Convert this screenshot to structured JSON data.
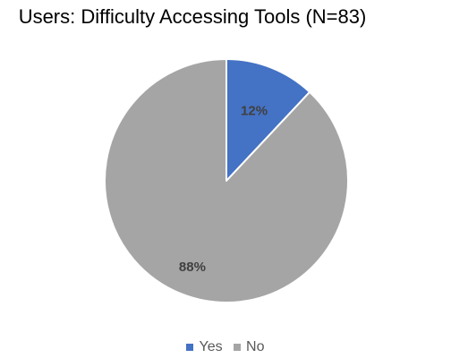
{
  "chart_data": {
    "type": "pie",
    "title": "Users: Difficulty Accessing Tools (N=83)",
    "categories": [
      "Yes",
      "No"
    ],
    "values": [
      12,
      88
    ],
    "data_labels": [
      "12%",
      "88%"
    ],
    "colors": [
      "#4472C4",
      "#A5A5A5"
    ],
    "legend_position": "bottom"
  }
}
